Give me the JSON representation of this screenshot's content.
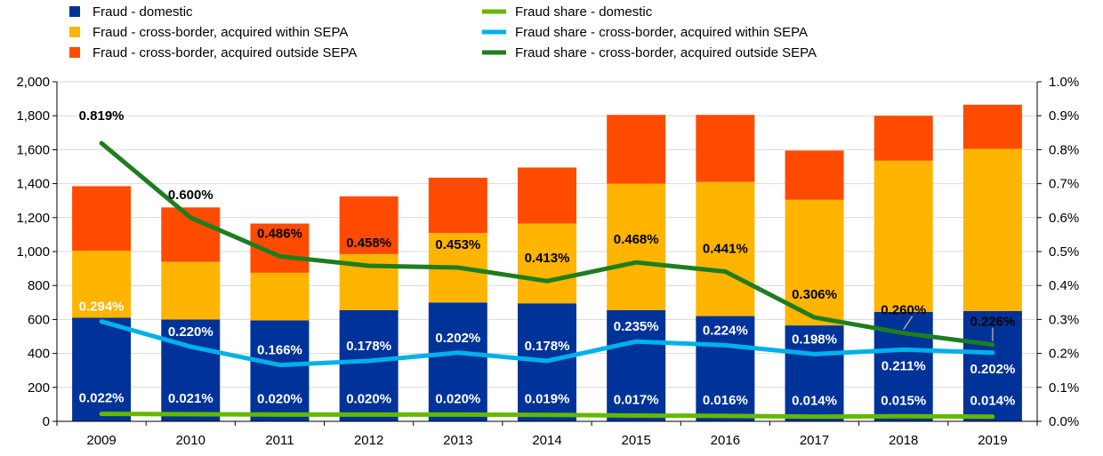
{
  "chart_data": {
    "type": "bar",
    "stacked": true,
    "categories": [
      "2009",
      "2010",
      "2011",
      "2012",
      "2013",
      "2014",
      "2015",
      "2016",
      "2017",
      "2018",
      "2019"
    ],
    "series": [
      {
        "name": "Fraud - domestic",
        "kind": "bar",
        "color": "#003399",
        "values": [
          610,
          600,
          595,
          655,
          700,
          695,
          655,
          620,
          565,
          645,
          650
        ]
      },
      {
        "name": "Fraud - cross-border, acquired within SEPA",
        "kind": "bar",
        "color": "#FFB400",
        "values": [
          395,
          340,
          280,
          330,
          410,
          470,
          745,
          790,
          740,
          890,
          955
        ]
      },
      {
        "name": "Fraud - cross-border, acquired outside SEPA",
        "kind": "bar",
        "color": "#FF4B00",
        "values": [
          380,
          320,
          290,
          340,
          325,
          330,
          405,
          395,
          290,
          265,
          260
        ]
      },
      {
        "name": "Fraud share - domestic",
        "kind": "line",
        "axis": "right",
        "color": "#65B800",
        "values": [
          0.022,
          0.021,
          0.02,
          0.02,
          0.02,
          0.019,
          0.017,
          0.016,
          0.014,
          0.015,
          0.014
        ],
        "labels": [
          "0.022%",
          "0.021%",
          "0.020%",
          "0.020%",
          "0.020%",
          "0.019%",
          "0.017%",
          "0.016%",
          "0.014%",
          "0.015%",
          "0.014%"
        ]
      },
      {
        "name": "Fraud share - cross-border, acquired within SEPA",
        "kind": "line",
        "axis": "right",
        "color": "#00B1EA",
        "values": [
          0.294,
          0.22,
          0.166,
          0.178,
          0.202,
          0.178,
          0.235,
          0.224,
          0.198,
          0.211,
          0.202
        ],
        "labels": [
          "0.294%",
          "0.220%",
          "0.166%",
          "0.178%",
          "0.202%",
          "0.178%",
          "0.235%",
          "0.224%",
          "0.198%",
          "0.211%",
          "0.202%"
        ]
      },
      {
        "name": "Fraud share - cross-border, acquired outside SEPA",
        "kind": "line",
        "axis": "right",
        "color": "#1E7D1E",
        "values": [
          0.819,
          0.6,
          0.486,
          0.458,
          0.453,
          0.413,
          0.468,
          0.441,
          0.306,
          0.26,
          0.226
        ],
        "labels": [
          "0.819%",
          "0.600%",
          "0.486%",
          "0.458%",
          "0.453%",
          "0.413%",
          "0.468%",
          "0.441%",
          "0.306%",
          "0.260%",
          "0.226%"
        ]
      }
    ],
    "yleft": {
      "range": [
        0,
        2000
      ],
      "ticks": [
        "0",
        "200",
        "400",
        "600",
        "800",
        "1,000",
        "1,200",
        "1,400",
        "1,600",
        "1,800",
        "2,000"
      ]
    },
    "yright": {
      "range": [
        0,
        1.0
      ],
      "ticks": [
        "0.0%",
        "0.1%",
        "0.2%",
        "0.3%",
        "0.4%",
        "0.5%",
        "0.6%",
        "0.7%",
        "0.8%",
        "0.9%",
        "1.0%"
      ]
    },
    "grid": true,
    "legend_position": "top"
  }
}
